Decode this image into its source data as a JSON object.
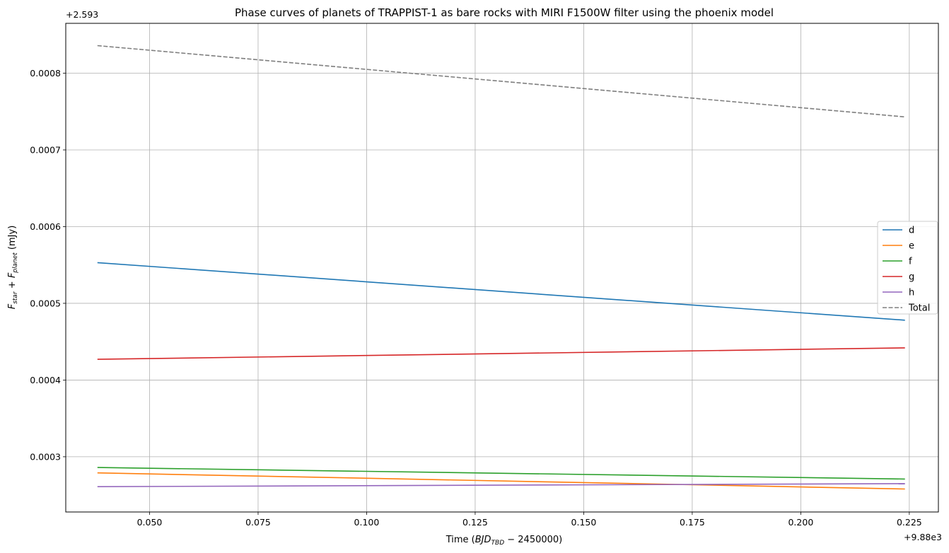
{
  "chart_data": {
    "type": "line",
    "title": "Phase curves of planets of TRAPPIST-1 as bare rocks with MIRI F1500W filter using the phoenix model",
    "xlabel_prefix": "Time (",
    "xlabel_math_main": "BJD",
    "xlabel_math_sub": "TBD",
    "xlabel_suffix": " − 2450000)",
    "ylabel_f1": "F",
    "ylabel_sub1": "star",
    "ylabel_plus": " + ",
    "ylabel_f2": "F",
    "ylabel_sub2": "planet",
    "ylabel_unit": " (mJy)",
    "x_offset_label": "+9.88e3",
    "y_offset_label": "+2.593",
    "xlim": [
      0.0307,
      0.2317
    ],
    "ylim": [
      0.000228,
      0.000865
    ],
    "x_ticks": [
      0.05,
      0.075,
      0.1,
      0.125,
      0.15,
      0.175,
      0.2,
      0.225
    ],
    "x_tick_labels": [
      "0.050",
      "0.075",
      "0.100",
      "0.125",
      "0.150",
      "0.175",
      "0.200",
      "0.225"
    ],
    "y_ticks": [
      0.0003,
      0.0004,
      0.0005,
      0.0006,
      0.0007,
      0.0008
    ],
    "y_tick_labels": [
      "0.0003",
      "0.0004",
      "0.0005",
      "0.0006",
      "0.0007",
      "0.0008"
    ],
    "grid": true,
    "legend_position": "center-right",
    "series": [
      {
        "name": "d",
        "color": "#1f77b4",
        "dashed": false,
        "x": [
          0.038,
          0.224
        ],
        "y": [
          0.000553,
          0.000478
        ]
      },
      {
        "name": "e",
        "color": "#ff7f0e",
        "dashed": false,
        "x": [
          0.038,
          0.224
        ],
        "y": [
          0.000279,
          0.000258
        ]
      },
      {
        "name": "f",
        "color": "#2ca02c",
        "dashed": false,
        "x": [
          0.038,
          0.224
        ],
        "y": [
          0.000286,
          0.000271
        ]
      },
      {
        "name": "g",
        "color": "#d62728",
        "dashed": false,
        "x": [
          0.038,
          0.224
        ],
        "y": [
          0.000427,
          0.000442
        ]
      },
      {
        "name": "h",
        "color": "#9467bd",
        "dashed": false,
        "x": [
          0.038,
          0.224
        ],
        "y": [
          0.000261,
          0.000265
        ]
      },
      {
        "name": "Total",
        "color": "#7f7f7f",
        "dashed": true,
        "x": [
          0.038,
          0.224
        ],
        "y": [
          0.000836,
          0.000743
        ]
      }
    ]
  }
}
